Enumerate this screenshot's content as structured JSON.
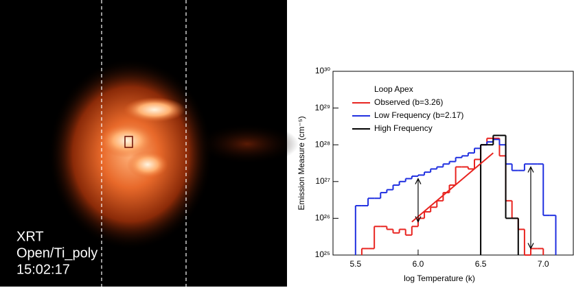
{
  "image": {
    "labels": [
      "XRT",
      "Open/Ti_poly",
      "15:02:17"
    ]
  },
  "chart_data": {
    "type": "step",
    "xlabel": "log Temperature (k)",
    "ylabel": "Emission Measure (cm⁻⁵)",
    "legend_title": "Loop Apex",
    "legend": "upper left",
    "log_y": true,
    "xlim": [
      5.32,
      7.24
    ],
    "ylim": [
      1e+25,
      1e+30
    ],
    "xticks": [
      5.5,
      {
        "value": 6,
        "label": "6.0"
      },
      6.5,
      {
        "value": 7,
        "label": "7.0"
      }
    ],
    "yticks": [
      {
        "value": 1e+25,
        "label": "10²⁵"
      },
      {
        "value": 1e+26,
        "label": "10²⁶"
      },
      {
        "value": 1e+27,
        "label": "10²⁷"
      },
      {
        "value": 1e+28,
        "label": "10²⁸"
      },
      {
        "value": 1e+29,
        "label": "10²⁹"
      },
      {
        "value": 1e+30,
        "label": "10³⁰"
      }
    ],
    "series": [
      {
        "name": "Observed (b=3.26)",
        "color": "#e8231f",
        "bins": [
          5.55,
          5.6,
          5.65,
          5.7,
          5.75,
          5.8,
          5.85,
          5.9,
          5.95,
          6.0,
          6.05,
          6.1,
          6.15,
          6.2,
          6.25,
          6.3,
          6.35,
          6.4,
          6.45,
          6.5,
          6.55,
          6.6,
          6.65,
          6.7,
          6.75,
          6.8,
          6.85,
          6.9,
          6.95,
          7.0
        ],
        "values": [
          1.5e+25,
          1.5e+25,
          6e+25,
          6e+25,
          5e+25,
          4e+25,
          5e+25,
          3.5e+25,
          6e+25,
          1e+26,
          1.5e+26,
          2e+26,
          3e+26,
          5e+26,
          8e+26,
          2.5e+27,
          2.5e+27,
          2.2e+27,
          4e+27,
          1e+28,
          1.5e+28,
          1.5e+28,
          5e+27,
          3e+26,
          1e+26,
          5e+25,
          1e+25,
          1.5e+25,
          1.5e+25
        ]
      },
      {
        "name": "Low Frequency (b=2.17)",
        "color": "#1f2fe0",
        "bins": [
          5.5,
          5.55,
          5.6,
          5.65,
          5.7,
          5.75,
          5.8,
          5.85,
          5.9,
          5.95,
          6.0,
          6.05,
          6.1,
          6.15,
          6.2,
          6.25,
          6.3,
          6.35,
          6.4,
          6.45,
          6.5,
          6.55,
          6.6,
          6.65,
          6.7,
          6.75,
          6.8,
          6.85,
          6.9,
          6.95,
          7.0,
          7.05,
          7.1
        ],
        "values": [
          2.2e+26,
          2.2e+26,
          3.5e+26,
          3.5e+26,
          5e+26,
          6e+26,
          8e+26,
          1e+27,
          1.2e+27,
          1.4e+27,
          1.5e+27,
          1.8e+27,
          2.2e+27,
          2.5e+27,
          3e+27,
          3.5e+27,
          4.5e+27,
          5e+27,
          6e+27,
          8e+27,
          1e+28,
          1.2e+28,
          1.4e+28,
          1e+28,
          3e+27,
          2e+27,
          2e+27,
          3e+27,
          3e+27,
          3e+27,
          1.2e+26,
          1.2e+26
        ]
      },
      {
        "name": "High Frequency",
        "color": "#000000",
        "bins": [
          6.5,
          6.55,
          6.6,
          6.65,
          6.7,
          6.75,
          6.8
        ],
        "values": [
          1e+28,
          1e+28,
          1.8e+28,
          1.8e+28,
          1e+26,
          1e+26
        ]
      }
    ],
    "fit": {
      "color": "#e8231f",
      "x": [
        5.95,
        6.6
      ],
      "y": [
        8e+25,
        6e+27
      ]
    },
    "arrows": [
      {
        "x": 6.0,
        "y": [
          8e+25,
          1.2e+27
        ]
      },
      {
        "x": 6.9,
        "y": [
          1.5e+25,
          2.5e+27
        ]
      }
    ]
  }
}
